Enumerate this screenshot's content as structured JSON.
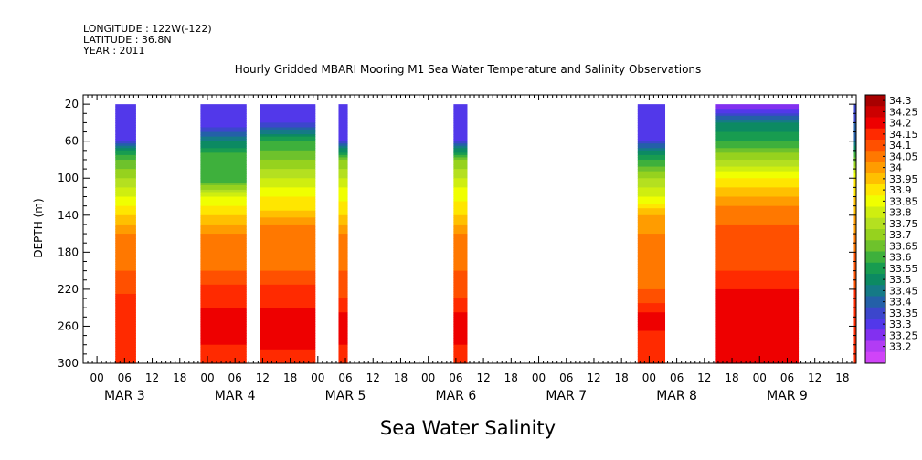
{
  "header": {
    "longitude": "LONGITUDE : 122W(-122)",
    "latitude": "LATITUDE : 36.8N",
    "year": "YEAR : 2011"
  },
  "figure_title": "Sea Water Salinity",
  "chart_data": {
    "type": "heatmap",
    "title": "Hourly Gridded MBARI Mooring M1 Sea Water Temperature and Salinity Observations",
    "xlabel": "",
    "ylabel": "DEPTH (m)",
    "x_unit": "hours since MAR 2 2011 21:00",
    "xlim": [
      0,
      168
    ],
    "ylim": [
      300,
      10
    ],
    "y_ticks": [
      20,
      60,
      100,
      140,
      180,
      220,
      260,
      300
    ],
    "x_hour_ticks": [
      {
        "h": 3,
        "label": "00"
      },
      {
        "h": 9,
        "label": "06"
      },
      {
        "h": 15,
        "label": "12"
      },
      {
        "h": 21,
        "label": "18"
      },
      {
        "h": 27,
        "label": "00"
      },
      {
        "h": 33,
        "label": "06"
      },
      {
        "h": 39,
        "label": "12"
      },
      {
        "h": 45,
        "label": "18"
      },
      {
        "h": 51,
        "label": "00"
      },
      {
        "h": 57,
        "label": "06"
      },
      {
        "h": 63,
        "label": "12"
      },
      {
        "h": 69,
        "label": "18"
      },
      {
        "h": 75,
        "label": "00"
      },
      {
        "h": 81,
        "label": "06"
      },
      {
        "h": 87,
        "label": "12"
      },
      {
        "h": 93,
        "label": "18"
      },
      {
        "h": 99,
        "label": "00"
      },
      {
        "h": 105,
        "label": "06"
      },
      {
        "h": 111,
        "label": "12"
      },
      {
        "h": 117,
        "label": "18"
      },
      {
        "h": 123,
        "label": "00"
      },
      {
        "h": 129,
        "label": "06"
      },
      {
        "h": 135,
        "label": "12"
      },
      {
        "h": 141,
        "label": "18"
      },
      {
        "h": 147,
        "label": "00"
      },
      {
        "h": 153,
        "label": "06"
      },
      {
        "h": 159,
        "label": "12"
      },
      {
        "h": 165,
        "label": "18"
      }
    ],
    "x_date_labels": [
      {
        "h": 9,
        "label": "MAR  3"
      },
      {
        "h": 33,
        "label": "MAR  4"
      },
      {
        "h": 57,
        "label": "MAR  5"
      },
      {
        "h": 81,
        "label": "MAR  6"
      },
      {
        "h": 105,
        "label": "MAR  7"
      },
      {
        "h": 129,
        "label": "MAR  8"
      },
      {
        "h": 153,
        "label": "MAR  9"
      }
    ],
    "segments": [
      {
        "start": 7.0,
        "end": 11.5,
        "profile": 0
      },
      {
        "start": 25.5,
        "end": 35.5,
        "profile": 1
      },
      {
        "start": 38.5,
        "end": 50.5,
        "profile": 2
      },
      {
        "start": 55.5,
        "end": 57.5,
        "profile": 3
      },
      {
        "start": 80.5,
        "end": 83.5,
        "profile": 3
      },
      {
        "start": 120.5,
        "end": 126.5,
        "profile": 4
      },
      {
        "start": 137.5,
        "end": 155.5,
        "profile": 5
      },
      {
        "start": 167.5,
        "end": 169.0,
        "profile": 6
      }
    ],
    "profiles": [
      [
        [
          20,
          33.35
        ],
        [
          60,
          33.35
        ],
        [
          70,
          33.55
        ],
        [
          80,
          33.65
        ],
        [
          100,
          33.75
        ],
        [
          120,
          33.85
        ],
        [
          140,
          33.95
        ],
        [
          160,
          34.05
        ],
        [
          200,
          34.1
        ],
        [
          225,
          34.15
        ],
        [
          240,
          34.2
        ],
        [
          300,
          34.2
        ]
      ],
      [
        [
          20,
          33.35
        ],
        [
          45,
          33.35
        ],
        [
          60,
          33.5
        ],
        [
          80,
          33.65
        ],
        [
          100,
          33.6
        ],
        [
          120,
          33.85
        ],
        [
          140,
          33.95
        ],
        [
          160,
          34.05
        ],
        [
          200,
          34.1
        ],
        [
          215,
          34.15
        ],
        [
          240,
          34.2
        ],
        [
          250,
          34.25
        ],
        [
          265,
          34.25
        ],
        [
          280,
          34.2
        ],
        [
          300,
          34.2
        ]
      ],
      [
        [
          20,
          33.35
        ],
        [
          40,
          33.35
        ],
        [
          60,
          33.6
        ],
        [
          80,
          33.7
        ],
        [
          100,
          33.8
        ],
        [
          120,
          33.9
        ],
        [
          135,
          33.95
        ],
        [
          150,
          34.05
        ],
        [
          200,
          34.1
        ],
        [
          215,
          34.15
        ],
        [
          240,
          34.2
        ],
        [
          250,
          34.25
        ],
        [
          270,
          34.25
        ],
        [
          285,
          34.2
        ],
        [
          300,
          34.2
        ]
      ],
      [
        [
          20,
          33.35
        ],
        [
          60,
          33.35
        ],
        [
          80,
          33.7
        ],
        [
          110,
          33.85
        ],
        [
          140,
          33.95
        ],
        [
          160,
          34.05
        ],
        [
          200,
          34.1
        ],
        [
          230,
          34.15
        ],
        [
          245,
          34.2
        ],
        [
          250,
          34.25
        ],
        [
          265,
          34.25
        ],
        [
          280,
          34.2
        ],
        [
          300,
          34.2
        ]
      ],
      [
        [
          20,
          33.35
        ],
        [
          60,
          33.35
        ],
        [
          70,
          33.5
        ],
        [
          80,
          33.6
        ],
        [
          100,
          33.75
        ],
        [
          120,
          33.85
        ],
        [
          140,
          34.0
        ],
        [
          160,
          34.05
        ],
        [
          220,
          34.1
        ],
        [
          235,
          34.15
        ],
        [
          245,
          34.2
        ],
        [
          255,
          34.25
        ],
        [
          265,
          34.2
        ],
        [
          300,
          34.2
        ]
      ],
      [
        [
          20,
          33.25
        ],
        [
          30,
          33.35
        ],
        [
          40,
          33.5
        ],
        [
          60,
          33.6
        ],
        [
          80,
          33.75
        ],
        [
          100,
          33.9
        ],
        [
          120,
          34.0
        ],
        [
          130,
          34.05
        ],
        [
          150,
          34.1
        ],
        [
          200,
          34.15
        ],
        [
          220,
          34.2
        ],
        [
          240,
          34.25
        ],
        [
          280,
          34.25
        ],
        [
          300,
          34.2
        ]
      ],
      [
        [
          20,
          33.35
        ],
        [
          60,
          33.45
        ],
        [
          100,
          33.9
        ],
        [
          140,
          34.0
        ],
        [
          180,
          34.1
        ],
        [
          220,
          34.15
        ],
        [
          260,
          34.2
        ],
        [
          300,
          34.2
        ]
      ]
    ],
    "colorbar": {
      "levels": [
        "34.3",
        "34.25",
        "34.2",
        "34.15",
        "34.1",
        "34.05",
        "34",
        "33.95",
        "33.9",
        "33.85",
        "33.8",
        "33.75",
        "33.7",
        "33.65",
        "33.6",
        "33.55",
        "33.5",
        "33.45",
        "33.4",
        "33.35",
        "33.3",
        "33.25",
        "33.2"
      ],
      "colors": [
        "#a80000",
        "#cc0000",
        "#ee0000",
        "#ff2a00",
        "#ff5000",
        "#ff7800",
        "#ff9c00",
        "#ffc000",
        "#ffe600",
        "#f0ff00",
        "#cfee10",
        "#b4e020",
        "#96d21e",
        "#6ec22c",
        "#3eb03c",
        "#189c50",
        "#0c8a62",
        "#157a86",
        "#2460a8",
        "#3c46cc",
        "#5238ea",
        "#8230f0",
        "#b23cf4",
        "#d044f8"
      ],
      "value_min": 33.2,
      "value_max": 34.3
    }
  }
}
